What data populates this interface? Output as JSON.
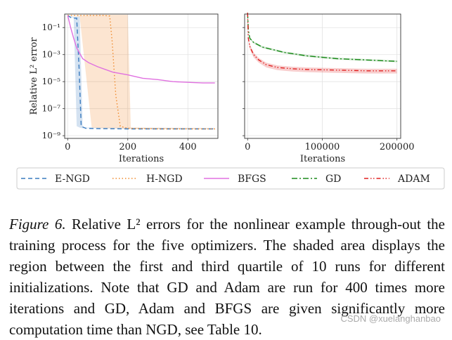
{
  "chart_data": [
    {
      "type": "line",
      "ylabel": "Relative L² error",
      "xlabel": "Iterations",
      "yscale": "log",
      "ylim": [
        1e-09,
        1
      ],
      "xlim": [
        -10,
        500
      ],
      "xticks": [
        0,
        200,
        400
      ],
      "yticks": [
        {
          "v": -1,
          "label": "10⁻¹"
        },
        {
          "v": -3,
          "label": "10⁻³"
        },
        {
          "v": -5,
          "label": "10⁻⁵"
        },
        {
          "v": -7,
          "label": "10⁻⁷"
        },
        {
          "v": -9,
          "label": "10⁻⁹"
        }
      ],
      "grid": true,
      "series": [
        {
          "name": "E-NGD",
          "color": "#3a7bbf",
          "style": "dashed",
          "x": [
            0,
            10,
            20,
            30,
            38,
            45,
            60,
            100,
            200,
            300,
            400,
            490
          ],
          "log10_y": [
            -0.1,
            -0.25,
            -0.3,
            -0.3,
            -4,
            -8.3,
            -8.45,
            -8.48,
            -8.5,
            -8.5,
            -8.5,
            -8.5
          ],
          "band_x": [
            0,
            20,
            30,
            40,
            50,
            490
          ],
          "band_lo": [
            -0.1,
            -0.3,
            -8.3,
            -8.4,
            -8.45,
            -8.5
          ],
          "band_hi": [
            -0.1,
            -0.2,
            -0.2,
            -0.2,
            -8.4,
            -8.45
          ]
        },
        {
          "name": "H-NGD",
          "color": "#f08a2c",
          "style": "dotted",
          "x": [
            0,
            20,
            60,
            120,
            140,
            148,
            160,
            175,
            200,
            300,
            400,
            490
          ],
          "log10_y": [
            -0.1,
            -0.1,
            -0.1,
            -0.1,
            -0.15,
            -2,
            -6,
            -8.3,
            -8.45,
            -8.5,
            -8.5,
            -8.5
          ],
          "band_x": [
            0,
            40,
            80,
            120,
            160,
            200,
            210,
            490
          ],
          "band_lo": [
            -0.1,
            -0.2,
            -8.4,
            -8.45,
            -8.45,
            -8.5,
            -8.5,
            -8.5
          ],
          "band_hi": [
            -0.1,
            -0.1,
            -0.05,
            -0.05,
            -0.05,
            -0.05,
            -8.4,
            -8.45
          ]
        },
        {
          "name": "BFGS",
          "color": "#e070e0",
          "style": "solid",
          "x": [
            0,
            10,
            20,
            30,
            50,
            70,
            100,
            150,
            200,
            250,
            300,
            350,
            400,
            450,
            490
          ],
          "log10_y": [
            -0.1,
            -1.0,
            -1.8,
            -2.5,
            -3.3,
            -3.6,
            -3.9,
            -4.3,
            -4.5,
            -4.75,
            -4.85,
            -5.0,
            -5.05,
            -5.1,
            -5.1
          ]
        },
        {
          "name": "GD",
          "color": "#1b8a1b",
          "style": "dashdot",
          "panel": 1
        },
        {
          "name": "ADAM",
          "color": "#e02020",
          "style": "dashdotdot",
          "panel": 1
        }
      ]
    },
    {
      "type": "line",
      "xlabel": "Iterations",
      "yscale": "log",
      "ylim": [
        1e-09,
        1
      ],
      "xlim": [
        -4000,
        205000
      ],
      "xticks": [
        0,
        100000,
        200000
      ],
      "grid": true,
      "series": [
        {
          "name": "GD",
          "color": "#1b8a1b",
          "style": "dashdot",
          "x": [
            0,
            1000,
            3000,
            8000,
            20000,
            50000,
            80000,
            120000,
            160000,
            200000
          ],
          "log10_y": [
            0.1,
            -1.2,
            -1.8,
            -2.1,
            -2.45,
            -2.85,
            -3.1,
            -3.3,
            -3.4,
            -3.5
          ],
          "band_lo_offset": -0.07,
          "band_hi_offset": 0.07
        },
        {
          "name": "ADAM",
          "color": "#e02020",
          "style": "dashdotdot",
          "x": [
            0,
            1000,
            3000,
            8000,
            15000,
            25000,
            40000,
            60000,
            80000,
            120000,
            160000,
            200000
          ],
          "log10_y": [
            0.1,
            -1.8,
            -2.4,
            -3.0,
            -3.4,
            -3.75,
            -3.95,
            -4.05,
            -4.1,
            -4.15,
            -4.2,
            -4.2
          ],
          "band_lo_offset": -0.2,
          "band_hi_offset": 0.15
        }
      ]
    }
  ],
  "legend": [
    {
      "name": "E-NGD",
      "color": "#3a7bbf",
      "style": "dashed"
    },
    {
      "name": "H-NGD",
      "color": "#f08a2c",
      "style": "dotted"
    },
    {
      "name": "BFGS",
      "color": "#e070e0",
      "style": "solid"
    },
    {
      "name": "GD",
      "color": "#1b8a1b",
      "style": "dashdot"
    },
    {
      "name": "ADAM",
      "color": "#e02020",
      "style": "dashdotdot"
    }
  ],
  "caption": {
    "label": "Figure 6.",
    "text": " Relative L² errors for the nonlinear example through-out the training process for the five optimizers. The shaded area displays the region between the first and third quartile of 10 runs for different initializations. Note that GD and Adam are run for 400 times more iterations and GD, Adam and BFGS are given significantly more computation time than NGD, see Table 10."
  },
  "watermark": "CSDN @xuelanghanbao"
}
